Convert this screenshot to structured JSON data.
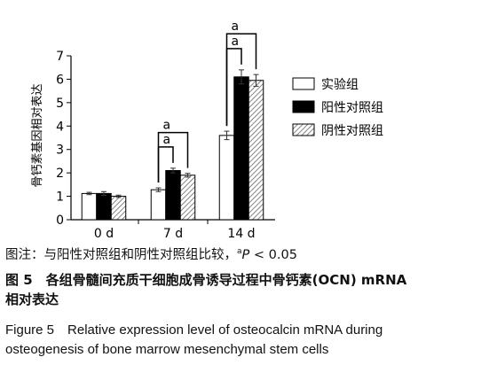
{
  "chart_data": {
    "type": "bar",
    "categories": [
      "0 d",
      "7 d",
      "14 d"
    ],
    "ylabel": "骨钙素基因相对表达",
    "ylim": [
      0,
      7
    ],
    "yticks": [
      "0",
      "1",
      "2",
      "3",
      "4",
      "5",
      "6",
      "7"
    ],
    "series": [
      {
        "name": "实验组",
        "values": [
          1.12,
          1.28,
          3.6
        ],
        "errors": [
          0.05,
          0.08,
          0.18
        ],
        "fill": "white"
      },
      {
        "name": "阳性对照组",
        "values": [
          1.12,
          2.1,
          6.1
        ],
        "errors": [
          0.08,
          0.1,
          0.3
        ],
        "fill": "black"
      },
      {
        "name": "阴性对照组",
        "values": [
          1.0,
          1.9,
          5.95
        ],
        "errors": [
          0.05,
          0.08,
          0.25
        ],
        "fill": "hatched"
      }
    ],
    "significance": [
      {
        "category": "7 d",
        "pairs": [
          [
            "实验组",
            "阳性对照组"
          ],
          [
            "实验组",
            "阴性对照组"
          ]
        ],
        "label": "a"
      },
      {
        "category": "14 d",
        "pairs": [
          [
            "实验组",
            "阳性对照组"
          ],
          [
            "实验组",
            "阴性对照组"
          ]
        ],
        "label": "a"
      }
    ],
    "legend_position": "right",
    "grid": false
  },
  "caption": {
    "note_prefix": "图注：与阳性对照组和阴性对照组比较，",
    "note_sup": "a",
    "note_p": "P",
    "note_suffix": " < 0.05",
    "cn_line1": "图 5　各组骨髓间充质干细胞成骨诱导过程中骨钙素(OCN) mRNA",
    "cn_line2": "相对表达",
    "en_line1": "Figure 5　Relative expression level of osteocalcin mRNA during",
    "en_line2": "osteogenesis of bone marrow mesenchymal stem cells"
  },
  "colors": {
    "bar_black": "#000000",
    "bar_white": "#ffffff",
    "hatch": "#555555",
    "axis": "#000000"
  }
}
